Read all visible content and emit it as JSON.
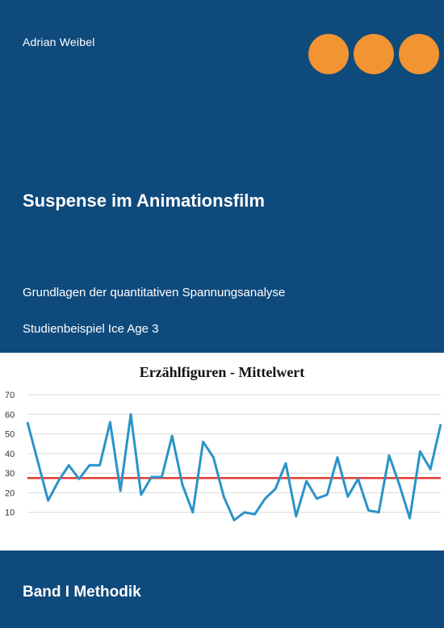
{
  "cover": {
    "author": "Adrian Weibel",
    "title": "Suspense im Animationsfilm",
    "subtitle": "Grundlagen der quantitativen Spannungsanalyse",
    "study": "Studienbeispiel Ice Age 3",
    "volume": "Band I  Methodik",
    "colors": {
      "background": "#0f4a7c",
      "dots": "#f29432",
      "series": "#2b93c8",
      "mean_line": "#e03c31"
    }
  },
  "chart_data": {
    "type": "line",
    "title": "Erzählfiguren - Mittelwert",
    "ylim": [
      0,
      70
    ],
    "yticks": [
      10,
      20,
      30,
      40,
      50,
      60,
      70
    ],
    "grid": true,
    "series": [
      {
        "values": [
          56,
          36,
          16,
          26,
          34,
          27,
          34,
          34,
          56,
          21,
          60,
          19,
          28,
          28,
          49,
          24,
          10,
          46,
          38,
          18,
          6,
          10,
          9,
          17,
          22,
          35,
          8,
          26,
          17,
          19,
          38,
          18,
          27,
          11,
          10,
          39,
          24,
          7,
          41,
          32,
          55
        ]
      }
    ],
    "mean_line": 27.5
  }
}
